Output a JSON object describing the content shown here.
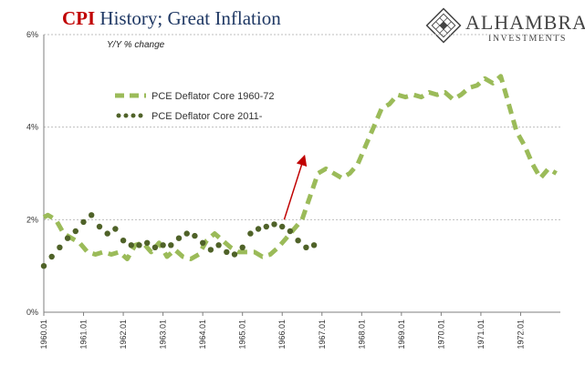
{
  "header": {
    "title_accent": "CPI",
    "title_rest": "History; Great Inflation",
    "subtitle": "Y/Y % change"
  },
  "logo": {
    "icon": "diamond-logo-icon",
    "name": "ALHAMBRA",
    "sub": "INVESTMENTS"
  },
  "colors": {
    "series1": "#9bbb59",
    "series2": "#4f6228",
    "arrow": "#c00000",
    "grid": "#bfbfbf",
    "title_accent": "#c00000",
    "title_rest": "#1f3864"
  },
  "chart_data": {
    "type": "line",
    "ylim": [
      0,
      6
    ],
    "xlim": [
      1960.0,
      1973.0
    ],
    "y_ticks": [
      0,
      2,
      4,
      6
    ],
    "y_tick_labels": [
      "0%",
      "2%",
      "4%",
      "6%"
    ],
    "x_tick_values": [
      1960,
      1961,
      1962,
      1963,
      1964,
      1965,
      1966,
      1967,
      1968,
      1969,
      1970,
      1971,
      1972
    ],
    "x_tick_labels": [
      "1960.01",
      "1961.01",
      "1962.01",
      "1963.01",
      "1964.01",
      "1965.01",
      "1966.01",
      "1967.01",
      "1968.01",
      "1969.01",
      "1970.01",
      "1971.01",
      "1972.01"
    ],
    "grid": "horizontal",
    "legend_position": "upper-left",
    "series": [
      {
        "name": "PCE Deflator Core 1960-72",
        "style": "dashed",
        "x": [
          1960.0,
          1960.1,
          1960.3,
          1960.5,
          1960.7,
          1960.9,
          1961.1,
          1961.3,
          1961.5,
          1961.7,
          1961.9,
          1962.1,
          1962.3,
          1962.5,
          1962.7,
          1962.9,
          1963.1,
          1963.3,
          1963.5,
          1963.7,
          1963.9,
          1964.1,
          1964.3,
          1964.5,
          1964.7,
          1964.9,
          1965.1,
          1965.3,
          1965.5,
          1965.7,
          1965.9,
          1966.1,
          1966.3,
          1966.5,
          1966.7,
          1966.9,
          1967.1,
          1967.3,
          1967.5,
          1967.7,
          1967.9,
          1968.1,
          1968.3,
          1968.5,
          1968.7,
          1968.9,
          1969.1,
          1969.3,
          1969.5,
          1969.7,
          1969.9,
          1970.1,
          1970.3,
          1970.5,
          1970.7,
          1970.9,
          1971.1,
          1971.3,
          1971.5,
          1971.7,
          1971.9,
          1972.1,
          1972.3,
          1972.5,
          1972.7,
          1972.9
        ],
        "y": [
          2.05,
          2.1,
          2.0,
          1.7,
          1.6,
          1.5,
          1.3,
          1.25,
          1.3,
          1.25,
          1.3,
          1.15,
          1.45,
          1.5,
          1.3,
          1.5,
          1.2,
          1.35,
          1.2,
          1.15,
          1.25,
          1.55,
          1.7,
          1.55,
          1.4,
          1.3,
          1.3,
          1.3,
          1.2,
          1.25,
          1.4,
          1.6,
          1.8,
          2.0,
          2.5,
          3.0,
          3.1,
          3.0,
          2.9,
          3.0,
          3.2,
          3.6,
          4.0,
          4.4,
          4.5,
          4.7,
          4.65,
          4.7,
          4.65,
          4.75,
          4.7,
          4.75,
          4.6,
          4.7,
          4.85,
          4.9,
          5.05,
          4.95,
          5.1,
          4.5,
          3.9,
          3.6,
          3.2,
          2.9,
          3.1,
          3.0
        ]
      },
      {
        "name": "PCE Deflator Core 2011-",
        "style": "dotted",
        "x": [
          1960.0,
          1960.2,
          1960.4,
          1960.6,
          1960.8,
          1961.0,
          1961.2,
          1961.4,
          1961.6,
          1961.8,
          1962.0,
          1962.2,
          1962.4,
          1962.6,
          1962.8,
          1963.0,
          1963.2,
          1963.4,
          1963.6,
          1963.8,
          1964.0,
          1964.2,
          1964.4,
          1964.6,
          1964.8,
          1965.0,
          1965.2,
          1965.4,
          1965.6,
          1965.8,
          1966.0,
          1966.2,
          1966.4,
          1966.6,
          1966.8
        ],
        "y": [
          1.0,
          1.2,
          1.4,
          1.6,
          1.75,
          1.95,
          2.1,
          1.85,
          1.7,
          1.8,
          1.55,
          1.45,
          1.45,
          1.5,
          1.4,
          1.45,
          1.45,
          1.6,
          1.7,
          1.65,
          1.5,
          1.35,
          1.45,
          1.3,
          1.25,
          1.4,
          1.7,
          1.8,
          1.85,
          1.9,
          1.85,
          1.75,
          1.55,
          1.4,
          1.45
        ]
      }
    ],
    "annotations": [
      {
        "type": "arrow",
        "from": [
          1966.05,
          2.0
        ],
        "to": [
          1966.55,
          3.35
        ]
      }
    ]
  }
}
